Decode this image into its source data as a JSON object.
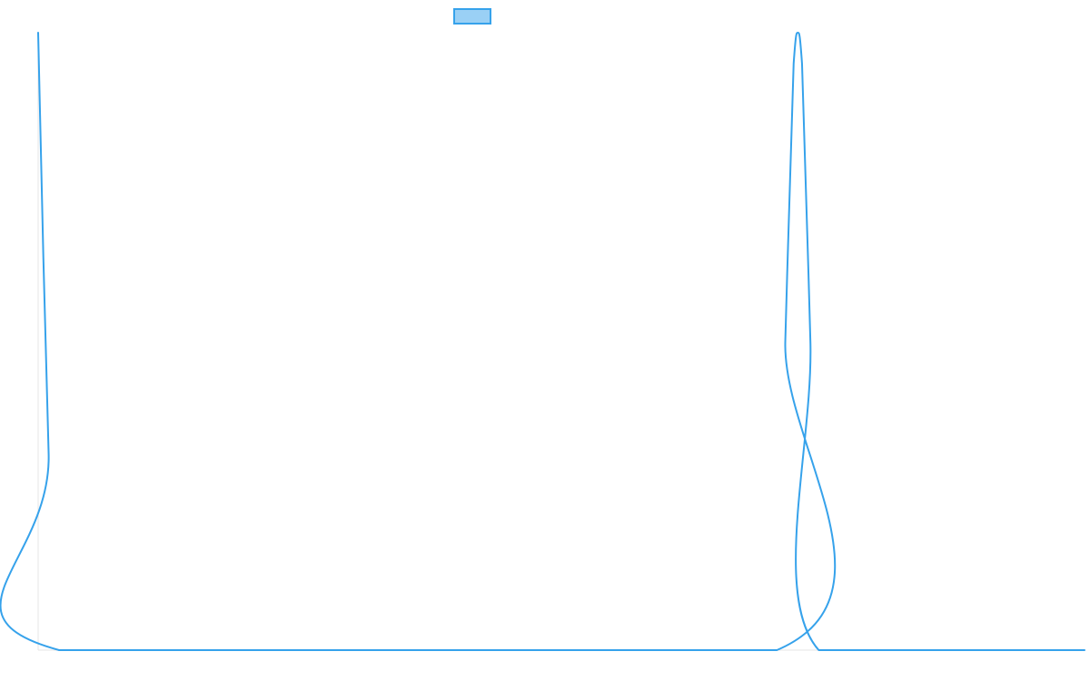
{
  "chart_data": {
    "type": "line",
    "title": "",
    "xlabel": "",
    "ylabel": "",
    "xlim": [
      0,
      100
    ],
    "ylim": [
      0,
      1
    ],
    "grid": false,
    "legend": {
      "placement": "top-center"
    },
    "series": [
      {
        "name": "",
        "color": "#36a2eb",
        "fill": "#9ad0f5",
        "points": [
          [
            0,
            1.0
          ],
          [
            1.0,
            0.32
          ],
          [
            2.0,
            0.0
          ],
          [
            70.6,
            0.0
          ],
          [
            71.4,
            0.5
          ],
          [
            72.2,
            0.95
          ],
          [
            72.6,
            1.0
          ],
          [
            73.0,
            0.95
          ],
          [
            73.8,
            0.5
          ],
          [
            74.6,
            0.0
          ],
          [
            100,
            0.0
          ]
        ]
      }
    ]
  }
}
